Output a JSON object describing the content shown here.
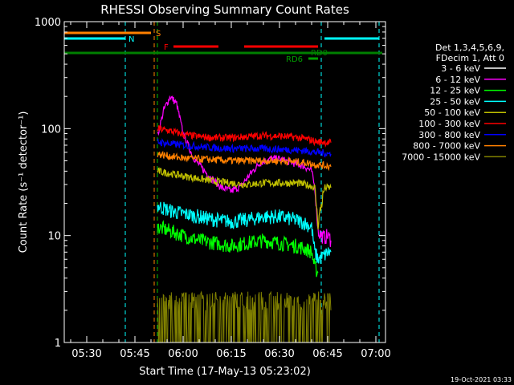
{
  "chart_data": {
    "type": "line",
    "title": "RHESSI Observing Summary Count Rates",
    "xlabel": "Start Time (17-May-13 05:23:02)",
    "ylabel": "Count Rate (s⁻¹ detector⁻¹)",
    "y_scale": "log",
    "ylim": [
      1,
      1000
    ],
    "xlim": [
      "05:23",
      "07:03"
    ],
    "x_ticks": [
      "05:30",
      "05:45",
      "06:00",
      "06:15",
      "06:30",
      "06:45",
      "07:00"
    ],
    "y_ticks": [
      "1",
      "10",
      "100",
      "1000"
    ],
    "grid": false,
    "legend_position": "right",
    "legend_header": [
      "Det 1,3,4,5,6,9,",
      "FDecim 1, Att 0"
    ],
    "timestamp": "19-Oct-2021 03:33",
    "flags": [
      {
        "label": "S",
        "color": "#ff8000",
        "segments": [
          [
            "05:23",
            "05:50"
          ]
        ]
      },
      {
        "label": "N",
        "color": "#00ffff",
        "segments": [
          [
            "05:23",
            "05:42"
          ],
          [
            "06:44",
            "07:01"
          ]
        ]
      },
      {
        "label": "F",
        "color": "#ff0000",
        "segments": [
          [
            "05:57",
            "06:11"
          ],
          [
            "06:19",
            "06:42"
          ]
        ]
      },
      {
        "label": "RD6",
        "color": "#00a000",
        "segments": [
          [
            "06:39",
            "06:42"
          ]
        ]
      },
      {
        "label": "RD0",
        "color": "#008000",
        "segments": [
          [
            "05:23",
            "07:02"
          ]
        ]
      }
    ],
    "vlines": [
      {
        "x": "05:42",
        "color": "#00ffff"
      },
      {
        "x": "05:51",
        "color": "#ff8000"
      },
      {
        "x": "05:52",
        "color": "#00c000"
      },
      {
        "x": "06:43",
        "color": "#00ffff"
      },
      {
        "x": "07:01",
        "color": "#00ffff"
      }
    ],
    "series": [
      {
        "name": "3 - 6 keV",
        "color": "#000000",
        "x": [
          "05:52",
          "05:54",
          "05:56",
          "05:58",
          "06:00",
          "06:03",
          "06:06",
          "06:09",
          "06:12",
          "06:15",
          "06:18",
          "06:21",
          "06:24",
          "06:27",
          "06:30",
          "06:33",
          "06:36",
          "06:38",
          "06:40",
          "06:41",
          "06:42",
          "06:43",
          "06:44",
          "06:45",
          "06:46"
        ],
        "values": [
          90,
          115,
          145,
          165,
          130,
          95,
          75,
          60,
          48,
          40,
          38,
          48,
          58,
          65,
          68,
          66,
          64,
          70,
          72,
          55,
          3,
          2.5,
          3,
          3,
          2.5
        ]
      },
      {
        "name": "6 - 12 keV",
        "color": "#ff00ff",
        "x": [
          "05:52",
          "05:54",
          "05:56",
          "05:58",
          "06:00",
          "06:03",
          "06:06",
          "06:09",
          "06:12",
          "06:15",
          "06:18",
          "06:21",
          "06:24",
          "06:27",
          "06:30",
          "06:33",
          "06:36",
          "06:38",
          "06:40",
          "06:41",
          "06:42",
          "06:43",
          "06:44",
          "06:45",
          "06:46"
        ],
        "values": [
          85,
          150,
          200,
          170,
          90,
          55,
          42,
          34,
          28,
          26,
          29,
          38,
          48,
          52,
          52,
          49,
          46,
          44,
          40,
          28,
          11,
          10,
          9.5,
          10,
          9
        ]
      },
      {
        "name": "12 - 25 keV",
        "color": "#00ff00",
        "x": [
          "05:52",
          "05:56",
          "06:00",
          "06:05",
          "06:10",
          "06:15",
          "06:20",
          "06:25",
          "06:30",
          "06:35",
          "06:38",
          "06:40",
          "06:41",
          "06:42"
        ],
        "values": [
          12,
          11,
          10,
          9,
          8.5,
          8,
          8.5,
          9,
          8.5,
          8,
          7.5,
          7,
          5,
          4.5
        ]
      },
      {
        "name": "25 - 50 keV",
        "color": "#00ffff",
        "x": [
          "05:52",
          "05:56",
          "06:00",
          "06:05",
          "06:10",
          "06:15",
          "06:20",
          "06:25",
          "06:30",
          "06:35",
          "06:38",
          "06:40",
          "06:41",
          "06:42",
          "06:44",
          "06:45",
          "06:46"
        ],
        "values": [
          19,
          17,
          16,
          15,
          14,
          13.5,
          14,
          15,
          15,
          14,
          13,
          12,
          7,
          6,
          6.5,
          7,
          7
        ]
      },
      {
        "name": "50 - 100 keV",
        "color": "#c0c000",
        "x": [
          "05:52",
          "05:56",
          "06:00",
          "06:05",
          "06:10",
          "06:15",
          "06:20",
          "06:25",
          "06:30",
          "06:35",
          "06:38",
          "06:40",
          "06:41",
          "06:42",
          "06:44",
          "06:45",
          "06:46"
        ],
        "values": [
          40,
          38,
          36,
          34,
          32,
          31,
          30,
          31,
          31,
          31,
          30,
          29,
          28,
          13,
          28,
          28,
          28
        ]
      },
      {
        "name": "100 - 300 keV",
        "color": "#ff0000",
        "x": [
          "05:52",
          "05:56",
          "06:00",
          "06:05",
          "06:10",
          "06:15",
          "06:20",
          "06:25",
          "06:30",
          "06:35",
          "06:38",
          "06:40",
          "06:41",
          "06:42",
          "06:44",
          "06:45",
          "06:46"
        ],
        "values": [
          100,
          95,
          88,
          84,
          82,
          82,
          84,
          86,
          85,
          83,
          80,
          78,
          76,
          75,
          75,
          74,
          74
        ]
      },
      {
        "name": "300 - 800 keV",
        "color": "#0000ff",
        "x": [
          "05:52",
          "05:56",
          "06:00",
          "06:05",
          "06:10",
          "06:15",
          "06:20",
          "06:25",
          "06:30",
          "06:35",
          "06:38",
          "06:40",
          "06:41",
          "06:42",
          "06:44",
          "06:45",
          "06:46"
        ],
        "values": [
          75,
          72,
          70,
          68,
          66,
          65,
          65,
          65,
          64,
          63,
          62,
          61,
          60,
          60,
          59,
          58,
          58
        ]
      },
      {
        "name": "800 - 7000 keV",
        "color": "#ff8000",
        "x": [
          "05:52",
          "05:56",
          "06:00",
          "06:05",
          "06:10",
          "06:15",
          "06:20",
          "06:25",
          "06:30",
          "06:35",
          "06:38",
          "06:40",
          "06:41",
          "06:42",
          "06:44",
          "06:45",
          "06:46"
        ],
        "values": [
          58,
          55,
          53,
          52,
          51,
          50,
          50,
          50,
          50,
          49,
          48,
          47,
          46,
          46,
          45,
          45,
          44
        ]
      },
      {
        "name": "7000 - 15000 keV",
        "color": "#808000",
        "x": [
          "05:52",
          "05:58",
          "06:05",
          "06:10",
          "06:12",
          "06:18",
          "06:24",
          "06:30",
          "06:36",
          "06:40",
          "06:42",
          "06:44",
          "06:46"
        ],
        "values": [
          2,
          2,
          2,
          1,
          1,
          2,
          2,
          2,
          2,
          2,
          2,
          2,
          2
        ]
      }
    ]
  }
}
